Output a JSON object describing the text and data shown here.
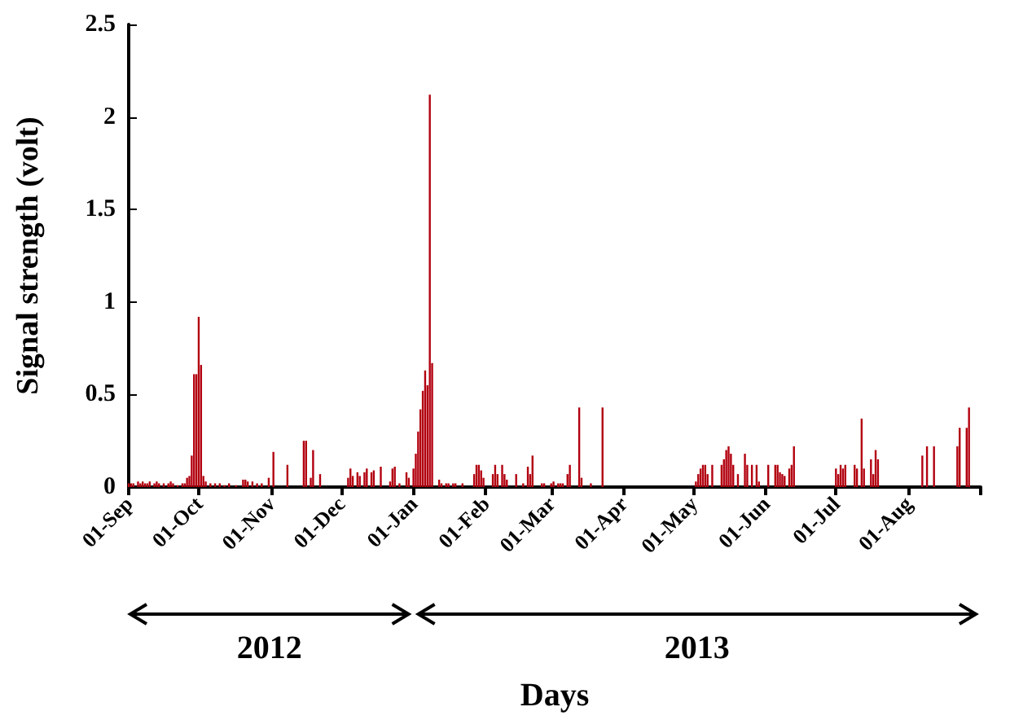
{
  "chart_data": {
    "type": "bar",
    "xlabel": "Days",
    "ylabel": "Signal strength (volt)",
    "grid": false,
    "annotations": [
      "2012",
      "2013"
    ],
    "xlim": [
      "2012-09-01",
      "2013-09-01"
    ],
    "xticks": [
      {
        "value": "2012-09-01",
        "label": "01-Sep"
      },
      {
        "value": "2012-10-01",
        "label": "01-Oct"
      },
      {
        "value": "2012-11-01",
        "label": "01-Nov"
      },
      {
        "value": "2012-12-01",
        "label": "01-Dec"
      },
      {
        "value": "2013-01-01",
        "label": "01-Jan"
      },
      {
        "value": "2013-02-01",
        "label": "01-Feb"
      },
      {
        "value": "2013-03-01",
        "label": "01-Mar"
      },
      {
        "value": "2013-04-01",
        "label": "01-Apr"
      },
      {
        "value": "2013-05-01",
        "label": "01-May"
      },
      {
        "value": "2013-06-01",
        "label": "01-Jun"
      },
      {
        "value": "2013-07-01",
        "label": "01-Jul"
      },
      {
        "value": "2013-08-01",
        "label": "01-Aug"
      },
      {
        "value": "2013-09-01",
        "label": null
      }
    ],
    "ylim": [
      0,
      2.5
    ],
    "yticks": [
      0,
      0.5,
      1,
      1.5,
      2,
      2.5
    ],
    "series": [
      {
        "color": "#b2000f",
        "x": [
          "2012-09-01",
          "2012-09-02",
          "2012-09-03",
          "2012-09-05",
          "2012-09-06",
          "2012-09-07",
          "2012-09-08",
          "2012-09-09",
          "2012-09-10",
          "2012-09-12",
          "2012-09-13",
          "2012-09-14",
          "2012-09-16",
          "2012-09-18",
          "2012-09-19",
          "2012-09-20",
          "2012-09-22",
          "2012-09-24",
          "2012-09-25",
          "2012-09-26",
          "2012-09-27",
          "2012-09-28",
          "2012-09-29",
          "2012-09-30",
          "2012-10-01",
          "2012-10-02",
          "2012-10-03",
          "2012-10-04",
          "2012-10-06",
          "2012-10-08",
          "2012-10-10",
          "2012-10-12",
          "2012-10-14",
          "2012-10-17",
          "2012-10-20",
          "2012-10-21",
          "2012-10-22",
          "2012-10-24",
          "2012-10-26",
          "2012-10-28",
          "2012-10-31",
          "2012-11-02",
          "2012-11-08",
          "2012-11-15",
          "2012-11-16",
          "2012-11-18",
          "2012-11-19",
          "2012-11-22",
          "2012-12-04",
          "2012-12-05",
          "2012-12-06",
          "2012-12-08",
          "2012-12-09",
          "2012-12-11",
          "2012-12-12",
          "2012-12-14",
          "2012-12-15",
          "2012-12-18",
          "2012-12-22",
          "2012-12-23",
          "2012-12-24",
          "2012-12-26",
          "2012-12-29",
          "2012-12-30",
          "2013-01-01",
          "2013-01-02",
          "2013-01-03",
          "2013-01-04",
          "2013-01-05",
          "2013-01-06",
          "2013-01-07",
          "2013-01-08",
          "2013-01-09",
          "2013-01-12",
          "2013-01-13",
          "2013-01-15",
          "2013-01-16",
          "2013-01-18",
          "2013-01-19",
          "2013-01-22",
          "2013-01-27",
          "2013-01-28",
          "2013-01-29",
          "2013-01-30",
          "2013-01-31",
          "2013-02-04",
          "2013-02-05",
          "2013-02-06",
          "2013-02-08",
          "2013-02-09",
          "2013-02-10",
          "2013-02-14",
          "2013-02-17",
          "2013-02-19",
          "2013-02-20",
          "2013-02-21",
          "2013-02-25",
          "2013-02-26",
          "2013-03-01",
          "2013-03-02",
          "2013-03-04",
          "2013-03-05",
          "2013-03-06",
          "2013-03-08",
          "2013-03-09",
          "2013-03-13",
          "2013-03-14",
          "2013-03-18",
          "2013-03-23",
          "2013-05-02",
          "2013-05-03",
          "2013-05-04",
          "2013-05-05",
          "2013-05-06",
          "2013-05-07",
          "2013-05-09",
          "2013-05-13",
          "2013-05-14",
          "2013-05-15",
          "2013-05-16",
          "2013-05-17",
          "2013-05-18",
          "2013-05-20",
          "2013-05-23",
          "2013-05-24",
          "2013-05-26",
          "2013-05-28",
          "2013-05-29",
          "2013-06-02",
          "2013-06-05",
          "2013-06-06",
          "2013-06-07",
          "2013-06-08",
          "2013-06-09",
          "2013-06-11",
          "2013-06-12",
          "2013-06-13",
          "2013-07-01",
          "2013-07-02",
          "2013-07-03",
          "2013-07-04",
          "2013-07-05",
          "2013-07-09",
          "2013-07-10",
          "2013-07-12",
          "2013-07-13",
          "2013-07-16",
          "2013-07-17",
          "2013-07-18",
          "2013-07-19",
          "2013-08-07",
          "2013-08-09",
          "2013-08-12",
          "2013-08-22",
          "2013-08-23",
          "2013-08-26",
          "2013-08-27"
        ],
        "values": [
          0.02,
          0.02,
          0.02,
          0.03,
          0.02,
          0.03,
          0.02,
          0.02,
          0.03,
          0.02,
          0.03,
          0.02,
          0.02,
          0.02,
          0.03,
          0.02,
          0.01,
          0.02,
          0.02,
          0.05,
          0.06,
          0.17,
          0.61,
          0.61,
          0.92,
          0.66,
          0.06,
          0.03,
          0.02,
          0.02,
          0.02,
          0.01,
          0.02,
          0.01,
          0.04,
          0.04,
          0.03,
          0.03,
          0.02,
          0.02,
          0.05,
          0.19,
          0.12,
          0.25,
          0.25,
          0.05,
          0.2,
          0.07,
          0.05,
          0.1,
          0.06,
          0.08,
          0.06,
          0.08,
          0.1,
          0.08,
          0.09,
          0.11,
          0.03,
          0.1,
          0.11,
          0.02,
          0.08,
          0.05,
          0.1,
          0.18,
          0.3,
          0.42,
          0.52,
          0.63,
          0.55,
          2.12,
          0.67,
          0.04,
          0.02,
          0.02,
          0.02,
          0.02,
          0.02,
          0.02,
          0.07,
          0.12,
          0.12,
          0.09,
          0.05,
          0.07,
          0.12,
          0.07,
          0.12,
          0.07,
          0.04,
          0.07,
          0.02,
          0.11,
          0.07,
          0.17,
          0.02,
          0.02,
          0.02,
          0.03,
          0.02,
          0.02,
          0.02,
          0.07,
          0.12,
          0.43,
          0.05,
          0.02,
          0.43,
          0.03,
          0.07,
          0.1,
          0.12,
          0.12,
          0.07,
          0.12,
          0.12,
          0.15,
          0.2,
          0.22,
          0.18,
          0.12,
          0.07,
          0.18,
          0.12,
          0.12,
          0.12,
          0.03,
          0.12,
          0.12,
          0.12,
          0.08,
          0.07,
          0.06,
          0.1,
          0.12,
          0.22,
          0.1,
          0.07,
          0.12,
          0.1,
          0.12,
          0.12,
          0.1,
          0.37,
          0.1,
          0.15,
          0.07,
          0.2,
          0.15,
          0.17,
          0.22,
          0.22,
          0.22,
          0.32,
          0.32,
          0.43
        ]
      }
    ]
  }
}
